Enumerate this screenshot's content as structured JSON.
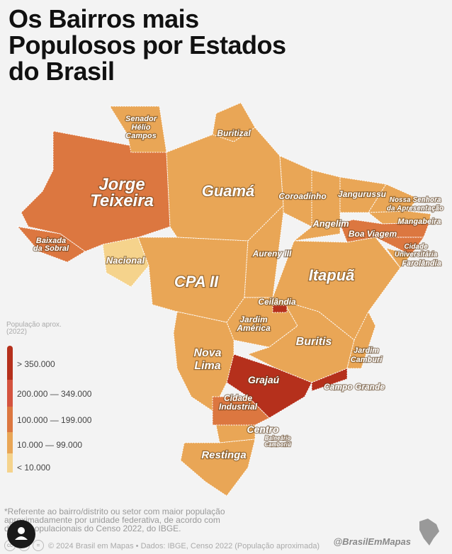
{
  "title": "Os Bairros mais Populosos por Estados do Brasil",
  "colors": {
    "c1": "#F5D38C",
    "c2": "#E9A656",
    "c3": "#DC7740",
    "c4": "#D4533F",
    "c5": "#B5301C"
  },
  "legend": {
    "title": "População aprox. (2022)",
    "items": [
      {
        "label": "> 350.000",
        "color": "#B5301C"
      },
      {
        "label": "200.000 — 349.000",
        "color": "#D4533F"
      },
      {
        "label": "100.000 — 199.000",
        "color": "#DC7740"
      },
      {
        "label": "10.000 — 99.000",
        "color": "#E9A656"
      },
      {
        "label": "< 10.000",
        "color": "#F5D38C"
      }
    ]
  },
  "labels": {
    "rr": "Senador",
    "rr2": "Hélio",
    "rr3": "Campos",
    "ap": "Buritizal",
    "am1": "Jorge",
    "am2": "Teixeira",
    "pa": "Guamá",
    "ma": "Coroadinho",
    "ce": "Jangurussu",
    "rn1": "Nossa Senhora",
    "rn2": "da Apresentação",
    "pb": "Mangabeira",
    "pi": "Angelim",
    "pe": "Boa Viagem",
    "al1": "Cidade",
    "al2": "Universitária",
    "se": "Farolândia",
    "ac1": "Baixada",
    "ac2": "da Sobral",
    "ro": "Nacional",
    "to": "Aureny III",
    "mt": "CPA II",
    "ba": "Itapuã",
    "df": "Ceilândia",
    "go1": "Jardim",
    "go2": "América",
    "mg": "Buritis",
    "es1": "Jardim",
    "es2": "Camburi",
    "ms1": "Nova",
    "ms2": "Lima",
    "sp": "Grajaú",
    "rj": "Campo Grande",
    "pr1": "Cidade",
    "pr2": "Industrial",
    "sc": "Centro",
    "sc2": "Balneário",
    "sc3": "Camboriú",
    "rs": "Restinga"
  },
  "footnote": "*Referente ao bairro/distrito ou setor com maior população aproximadamente por unidade federativa, de acordo com dados populacionais do Censo 2022, do IBGE.",
  "footer": "© 2024 Brasil em Mapas • Dados: IBGE, Censo 2022 (População aproximada)",
  "handle": "@BrasilEmMapas"
}
